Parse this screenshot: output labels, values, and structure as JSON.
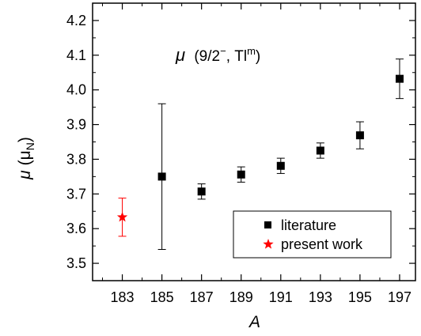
{
  "chart_data": {
    "type": "scatter",
    "xlabel": "A",
    "ylabel_symbol": "μ",
    "ylabel_unit_base": "μ",
    "ylabel_unit_sub": "N",
    "annotation": {
      "symbol": "μ",
      "text_before_sup": "9/2",
      "sup1": "−",
      "text_middle": ", Tl",
      "sup2": "m"
    },
    "xlim": [
      181.5,
      197.8
    ],
    "ylim": [
      3.45,
      4.25
    ],
    "x_ticks": [
      183,
      185,
      187,
      189,
      191,
      193,
      195,
      197
    ],
    "x_tick_labels": [
      "183",
      "185",
      "187",
      "189",
      "191",
      "193",
      "195",
      "197"
    ],
    "y_ticks": [
      3.5,
      3.6,
      3.7,
      3.8,
      3.9,
      4.0,
      4.1,
      4.2
    ],
    "y_tick_labels": [
      "3.5",
      "3.6",
      "3.7",
      "3.8",
      "3.9",
      "4.0",
      "4.1",
      "4.2"
    ],
    "series": [
      {
        "name": "literature",
        "marker": "square",
        "color": "#000000",
        "points": [
          {
            "x": 185,
            "y": 3.75,
            "err": 0.21
          },
          {
            "x": 187,
            "y": 3.707,
            "err": 0.022
          },
          {
            "x": 189,
            "y": 3.756,
            "err": 0.022
          },
          {
            "x": 191,
            "y": 3.781,
            "err": 0.022
          },
          {
            "x": 193,
            "y": 3.825,
            "err": 0.022
          },
          {
            "x": 195,
            "y": 3.869,
            "err": 0.039
          },
          {
            "x": 197,
            "y": 4.032,
            "err": 0.057
          }
        ]
      },
      {
        "name": "present work",
        "marker": "star",
        "color": "#ff0000",
        "points": [
          {
            "x": 183,
            "y": 3.633,
            "err": 0.055
          }
        ]
      }
    ],
    "legend_position": "bottom-right",
    "grid": false
  }
}
